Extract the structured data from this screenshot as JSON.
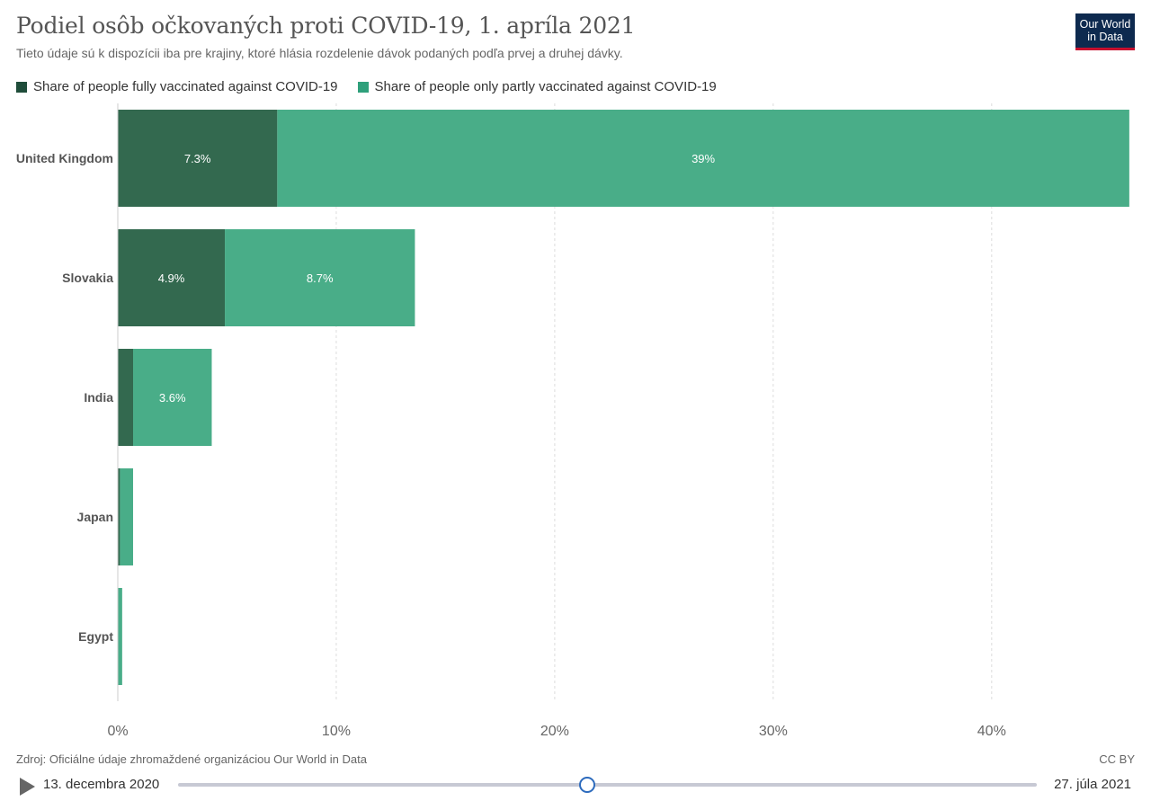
{
  "header": {
    "title": "Podiel osôb očkovaných proti COVID-19, 1. apríla 2021",
    "subtitle": "Tieto údaje sú k dispozícii iba pre krajiny, ktoré hlásia rozdelenie dávok podaných podľa prvej a druhej dávky.",
    "logo_line1": "Our World",
    "logo_line2": "in Data"
  },
  "colors": {
    "fully": "#33694f",
    "partly": "#49ad88",
    "logo_bg": "#0e2a4f",
    "logo_accent": "#c8102e"
  },
  "chart_data": {
    "type": "bar",
    "orientation": "horizontal",
    "stacked": true,
    "categories": [
      "United Kingdom",
      "Slovakia",
      "India",
      "Japan",
      "Egypt"
    ],
    "series": [
      {
        "name": "Share of people fully vaccinated against COVID-19",
        "values": [
          7.3,
          4.9,
          0.7,
          0.1,
          0.0
        ],
        "labels": [
          "7.3%",
          "4.9%",
          "",
          "",
          ""
        ]
      },
      {
        "name": "Share of people only partly vaccinated against COVID-19",
        "values": [
          39,
          8.7,
          3.6,
          0.6,
          0.2
        ],
        "labels": [
          "39%",
          "8.7%",
          "3.6%",
          "",
          ""
        ]
      }
    ],
    "xlim": [
      0,
      46.1
    ],
    "xticks": [
      0,
      10,
      20,
      30,
      40
    ],
    "xtick_labels": [
      "0%",
      "10%",
      "20%",
      "30%",
      "40%"
    ],
    "grid": true,
    "legend_position": "top-left"
  },
  "footer": {
    "source": "Zdroj: Oficiálne údaje zhromaždené organizáciou Our World in Data",
    "license": "CC BY"
  },
  "timeline": {
    "start_label": "13. decembra 2020",
    "end_label": "27. júla 2021",
    "position": 0.476
  }
}
